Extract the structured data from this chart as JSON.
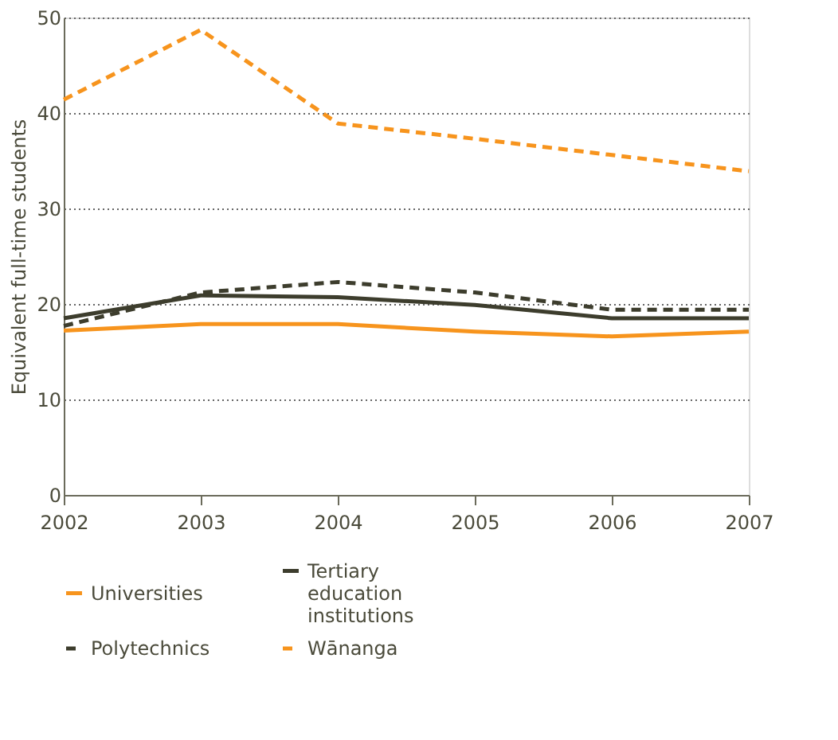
{
  "chart_data": {
    "type": "line",
    "ylabel": "Equivalent full-time students",
    "x": [
      2002,
      2003,
      2004,
      2005,
      2006,
      2007
    ],
    "xlim": [
      2002,
      2007
    ],
    "xticks": [
      2002,
      2003,
      2004,
      2005,
      2006,
      2007
    ],
    "ylim": [
      0,
      50
    ],
    "yticks": [
      0,
      10,
      20,
      30,
      40,
      50
    ],
    "grid": "y",
    "legend": "bottom",
    "series": [
      {
        "name": "Universities",
        "color": "#f7941d",
        "line_style": "solid",
        "values": [
          17.2,
          17.9,
          17.9,
          17.1,
          16.6,
          17.1
        ]
      },
      {
        "name": "Tertiary education institutions",
        "color": "#3d3d2d",
        "line_style": "solid",
        "values": [
          18.5,
          20.9,
          20.7,
          19.9,
          18.5,
          18.5
        ]
      },
      {
        "name": "Polytechnics",
        "color": "#3d3d2d",
        "line_style": "dashed",
        "values": [
          17.7,
          21.2,
          22.3,
          21.2,
          19.4,
          19.4
        ]
      },
      {
        "name": "Wānanga",
        "color": "#f7941d",
        "line_style": "dashed",
        "values": [
          41.4,
          48.7,
          38.9,
          37.3,
          35.6,
          33.9
        ]
      }
    ]
  }
}
